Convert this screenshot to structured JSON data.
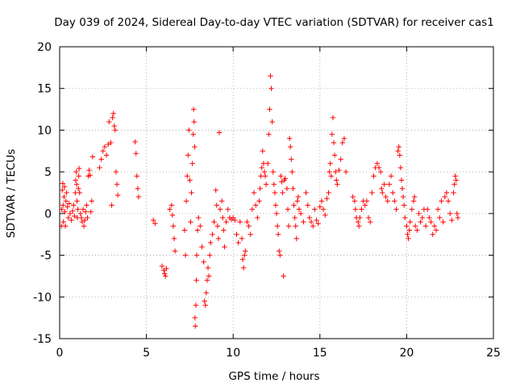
{
  "chart_data": {
    "type": "scatter",
    "title": "Day 039 of 2024, Sidereal Day-to-day VTEC variation (SDTVAR) for receiver cas1",
    "xlabel": "GPS time / hours",
    "ylabel": "SDTVAR / TECUs",
    "xlim": [
      0,
      25
    ],
    "ylim": [
      -15,
      20
    ],
    "xticks": [
      0,
      5,
      10,
      15,
      20,
      25
    ],
    "yticks": [
      -15,
      -10,
      -5,
      0,
      5,
      10,
      15,
      20
    ],
    "grid": true,
    "marker": "+",
    "series": [
      {
        "name": "SDTVAR",
        "color": "#ff0000",
        "points": [
          [
            0.1,
            -1.5
          ],
          [
            0.12,
            0.5
          ],
          [
            0.15,
            2.8
          ],
          [
            0.18,
            3.6
          ],
          [
            0.2,
            1.0
          ],
          [
            0.22,
            -1.0
          ],
          [
            0.25,
            2.0
          ],
          [
            0.28,
            3.2
          ],
          [
            0.3,
            0.2
          ],
          [
            0.33,
            -1.5
          ],
          [
            0.36,
            1.5
          ],
          [
            0.4,
            2.5
          ],
          [
            0.44,
            0.8
          ],
          [
            0.5,
            -0.5
          ],
          [
            0.55,
            1.2
          ],
          [
            0.6,
            0.0
          ],
          [
            0.68,
            -0.8
          ],
          [
            0.75,
            0.3
          ],
          [
            0.8,
            1.0
          ],
          [
            0.85,
            -0.3
          ],
          [
            0.9,
            2.5
          ],
          [
            0.92,
            4.0
          ],
          [
            0.95,
            5.0
          ],
          [
            0.98,
            3.5
          ],
          [
            1.0,
            1.5
          ],
          [
            1.02,
            -0.5
          ],
          [
            1.05,
            0.5
          ],
          [
            1.08,
            3.0
          ],
          [
            1.1,
            4.5
          ],
          [
            1.12,
            5.4
          ],
          [
            1.15,
            2.5
          ],
          [
            1.2,
            0.0
          ],
          [
            1.25,
            -0.5
          ],
          [
            1.3,
            -1.0
          ],
          [
            1.35,
            0.5
          ],
          [
            1.4,
            -1.5
          ],
          [
            1.45,
            -0.8
          ],
          [
            1.5,
            0.2
          ],
          [
            1.55,
            1.0
          ],
          [
            1.6,
            -0.5
          ],
          [
            1.65,
            4.5
          ],
          [
            1.7,
            5.2
          ],
          [
            1.75,
            4.6
          ],
          [
            1.8,
            0.2
          ],
          [
            1.85,
            1.5
          ],
          [
            1.9,
            6.8
          ],
          [
            2.3,
            5.5
          ],
          [
            2.4,
            6.5
          ],
          [
            2.5,
            7.5
          ],
          [
            2.6,
            8.0
          ],
          [
            2.7,
            7.0
          ],
          [
            2.8,
            8.3
          ],
          [
            2.85,
            11.0
          ],
          [
            2.95,
            8.5
          ],
          [
            3.0,
            1.0
          ],
          [
            3.05,
            11.5
          ],
          [
            3.1,
            12.0
          ],
          [
            3.15,
            10.5
          ],
          [
            3.2,
            10.0
          ],
          [
            3.25,
            5.0
          ],
          [
            3.3,
            3.5
          ],
          [
            3.35,
            2.2
          ],
          [
            4.35,
            8.6
          ],
          [
            4.4,
            7.2
          ],
          [
            4.45,
            4.5
          ],
          [
            4.5,
            3.0
          ],
          [
            4.55,
            2.0
          ],
          [
            5.4,
            -0.8
          ],
          [
            5.5,
            -1.2
          ],
          [
            5.9,
            -6.3
          ],
          [
            6.0,
            -6.8
          ],
          [
            6.05,
            -7.2
          ],
          [
            6.1,
            -7.5
          ],
          [
            6.15,
            -6.6
          ],
          [
            6.35,
            0.5
          ],
          [
            6.45,
            1.0
          ],
          [
            6.5,
            -0.2
          ],
          [
            6.55,
            -1.5
          ],
          [
            6.6,
            -3.0
          ],
          [
            6.65,
            -4.5
          ],
          [
            7.2,
            -2.0
          ],
          [
            7.25,
            -5.0
          ],
          [
            7.3,
            1.5
          ],
          [
            7.35,
            4.5
          ],
          [
            7.4,
            7.0
          ],
          [
            7.45,
            10.0
          ],
          [
            7.5,
            4.0
          ],
          [
            7.55,
            -1.0
          ],
          [
            7.6,
            2.5
          ],
          [
            7.65,
            6.0
          ],
          [
            7.7,
            9.5
          ],
          [
            7.72,
            12.5
          ],
          [
            7.75,
            11.0
          ],
          [
            7.78,
            8.0
          ],
          [
            7.8,
            -12.5
          ],
          [
            7.82,
            -13.5
          ],
          [
            7.85,
            -11.0
          ],
          [
            7.88,
            -8.0
          ],
          [
            7.9,
            -5.0
          ],
          [
            7.95,
            -2.0
          ],
          [
            8.0,
            -0.5
          ],
          [
            8.1,
            -1.5
          ],
          [
            8.2,
            -4.0
          ],
          [
            8.3,
            -5.8
          ],
          [
            8.35,
            -10.5
          ],
          [
            8.4,
            -11.0
          ],
          [
            8.45,
            -9.5
          ],
          [
            8.5,
            -8.0
          ],
          [
            8.55,
            -6.5
          ],
          [
            8.6,
            -7.5
          ],
          [
            8.65,
            -5.0
          ],
          [
            8.7,
            -3.5
          ],
          [
            8.8,
            -2.5
          ],
          [
            8.9,
            -1.0
          ],
          [
            9.0,
            2.8
          ],
          [
            9.05,
            1.0
          ],
          [
            9.1,
            -1.5
          ],
          [
            9.15,
            -3.0
          ],
          [
            9.2,
            9.7
          ],
          [
            9.25,
            0.5
          ],
          [
            9.35,
            1.5
          ],
          [
            9.4,
            -0.5
          ],
          [
            9.45,
            -2.0
          ],
          [
            9.5,
            -4.0
          ],
          [
            9.6,
            -1.0
          ],
          [
            9.7,
            0.5
          ],
          [
            9.8,
            -0.5
          ],
          [
            9.9,
            -0.7
          ],
          [
            10.0,
            -0.5
          ],
          [
            10.1,
            -0.8
          ],
          [
            10.2,
            -2.5
          ],
          [
            10.3,
            -3.5
          ],
          [
            10.4,
            -1.0
          ],
          [
            10.5,
            -3.0
          ],
          [
            10.55,
            -5.5
          ],
          [
            10.6,
            -6.5
          ],
          [
            10.65,
            -5.0
          ],
          [
            10.7,
            -4.5
          ],
          [
            10.8,
            -1.0
          ],
          [
            10.9,
            -1.5
          ],
          [
            11.0,
            -2.5
          ],
          [
            11.1,
            0.5
          ],
          [
            11.2,
            2.5
          ],
          [
            11.3,
            1.0
          ],
          [
            11.4,
            -0.5
          ],
          [
            11.5,
            1.5
          ],
          [
            11.55,
            3.0
          ],
          [
            11.6,
            4.5
          ],
          [
            11.65,
            5.5
          ],
          [
            11.7,
            7.5
          ],
          [
            11.75,
            6.0
          ],
          [
            11.8,
            5.0
          ],
          [
            11.85,
            4.5
          ],
          [
            11.9,
            3.5
          ],
          [
            12.0,
            6.0
          ],
          [
            12.05,
            9.5
          ],
          [
            12.1,
            12.5
          ],
          [
            12.15,
            16.5
          ],
          [
            12.2,
            15.0
          ],
          [
            12.25,
            11.0
          ],
          [
            12.3,
            5.0
          ],
          [
            12.35,
            3.5
          ],
          [
            12.4,
            2.5
          ],
          [
            12.45,
            1.0
          ],
          [
            12.5,
            0.0
          ],
          [
            12.55,
            -1.5
          ],
          [
            12.6,
            -2.5
          ],
          [
            12.65,
            -4.5
          ],
          [
            12.7,
            -5.0
          ],
          [
            12.75,
            4.5
          ],
          [
            12.8,
            3.8
          ],
          [
            12.85,
            2.5
          ],
          [
            12.9,
            -7.5
          ],
          [
            12.95,
            4.0
          ],
          [
            13.0,
            4.2
          ],
          [
            13.1,
            3.0
          ],
          [
            13.15,
            0.5
          ],
          [
            13.2,
            -1.5
          ],
          [
            13.25,
            9.0
          ],
          [
            13.3,
            8.0
          ],
          [
            13.35,
            6.5
          ],
          [
            13.4,
            5.0
          ],
          [
            13.45,
            3.0
          ],
          [
            13.5,
            1.0
          ],
          [
            13.55,
            -0.5
          ],
          [
            13.6,
            -1.5
          ],
          [
            13.65,
            -3.0
          ],
          [
            13.7,
            1.5
          ],
          [
            13.75,
            2.0
          ],
          [
            13.8,
            0.5
          ],
          [
            13.9,
            0.0
          ],
          [
            14.05,
            -1.0
          ],
          [
            14.2,
            2.5
          ],
          [
            14.3,
            1.0
          ],
          [
            14.4,
            -0.5
          ],
          [
            14.5,
            -1.0
          ],
          [
            14.6,
            -1.5
          ],
          [
            14.7,
            0.5
          ],
          [
            14.8,
            -0.8
          ],
          [
            14.9,
            -1.2
          ],
          [
            15.0,
            0.8
          ],
          [
            15.1,
            1.5
          ],
          [
            15.2,
            0.5
          ],
          [
            15.3,
            -0.2
          ],
          [
            15.4,
            1.8
          ],
          [
            15.5,
            2.5
          ],
          [
            15.55,
            5.0
          ],
          [
            15.6,
            6.0
          ],
          [
            15.65,
            4.5
          ],
          [
            15.7,
            9.5
          ],
          [
            15.75,
            11.5
          ],
          [
            15.8,
            8.5
          ],
          [
            15.85,
            7.0
          ],
          [
            15.9,
            5.0
          ],
          [
            15.95,
            4.0
          ],
          [
            16.0,
            3.5
          ],
          [
            16.1,
            5.2
          ],
          [
            16.2,
            6.5
          ],
          [
            16.3,
            8.5
          ],
          [
            16.4,
            9.0
          ],
          [
            16.5,
            5.0
          ],
          [
            16.9,
            2.0
          ],
          [
            17.0,
            1.5
          ],
          [
            17.05,
            0.5
          ],
          [
            17.1,
            -0.5
          ],
          [
            17.2,
            -1.0
          ],
          [
            17.25,
            -1.5
          ],
          [
            17.3,
            -0.5
          ],
          [
            17.4,
            0.5
          ],
          [
            17.5,
            1.5
          ],
          [
            17.6,
            1.0
          ],
          [
            17.7,
            1.5
          ],
          [
            17.8,
            -0.5
          ],
          [
            17.9,
            -1.0
          ],
          [
            18.0,
            2.5
          ],
          [
            18.1,
            4.5
          ],
          [
            18.2,
            5.5
          ],
          [
            18.3,
            6.0
          ],
          [
            18.4,
            5.5
          ],
          [
            18.5,
            5.0
          ],
          [
            18.55,
            3.0
          ],
          [
            18.6,
            2.5
          ],
          [
            18.7,
            3.5
          ],
          [
            18.8,
            2.0
          ],
          [
            18.9,
            1.5
          ],
          [
            19.0,
            3.5
          ],
          [
            19.1,
            4.5
          ],
          [
            19.2,
            2.5
          ],
          [
            19.3,
            1.5
          ],
          [
            19.4,
            0.5
          ],
          [
            19.5,
            7.5
          ],
          [
            19.55,
            8.0
          ],
          [
            19.6,
            7.0
          ],
          [
            19.65,
            5.5
          ],
          [
            19.7,
            4.0
          ],
          [
            19.75,
            3.0
          ],
          [
            19.8,
            2.0
          ],
          [
            19.85,
            1.0
          ],
          [
            19.9,
            -0.5
          ],
          [
            20.0,
            -1.5
          ],
          [
            20.05,
            -2.5
          ],
          [
            20.1,
            -3.0
          ],
          [
            20.15,
            -2.0
          ],
          [
            20.2,
            -1.0
          ],
          [
            20.3,
            0.5
          ],
          [
            20.4,
            1.5
          ],
          [
            20.45,
            2.0
          ],
          [
            20.5,
            -1.5
          ],
          [
            20.6,
            -2.0
          ],
          [
            20.7,
            0.0
          ],
          [
            20.8,
            -1.0
          ],
          [
            20.9,
            -0.5
          ],
          [
            21.0,
            0.5
          ],
          [
            21.1,
            -1.5
          ],
          [
            21.2,
            0.5
          ],
          [
            21.3,
            -0.5
          ],
          [
            21.4,
            -1.0
          ],
          [
            21.5,
            -2.5
          ],
          [
            21.6,
            -1.5
          ],
          [
            21.7,
            -2.0
          ],
          [
            21.8,
            0.5
          ],
          [
            21.9,
            -0.5
          ],
          [
            22.0,
            1.5
          ],
          [
            22.1,
            -1.0
          ],
          [
            22.2,
            2.0
          ],
          [
            22.3,
            2.5
          ],
          [
            22.4,
            1.5
          ],
          [
            22.5,
            0.0
          ],
          [
            22.6,
            -0.8
          ],
          [
            22.7,
            2.5
          ],
          [
            22.75,
            3.5
          ],
          [
            22.8,
            4.5
          ],
          [
            22.85,
            4.0
          ],
          [
            22.9,
            0.0
          ],
          [
            22.95,
            -0.5
          ]
        ]
      }
    ]
  }
}
